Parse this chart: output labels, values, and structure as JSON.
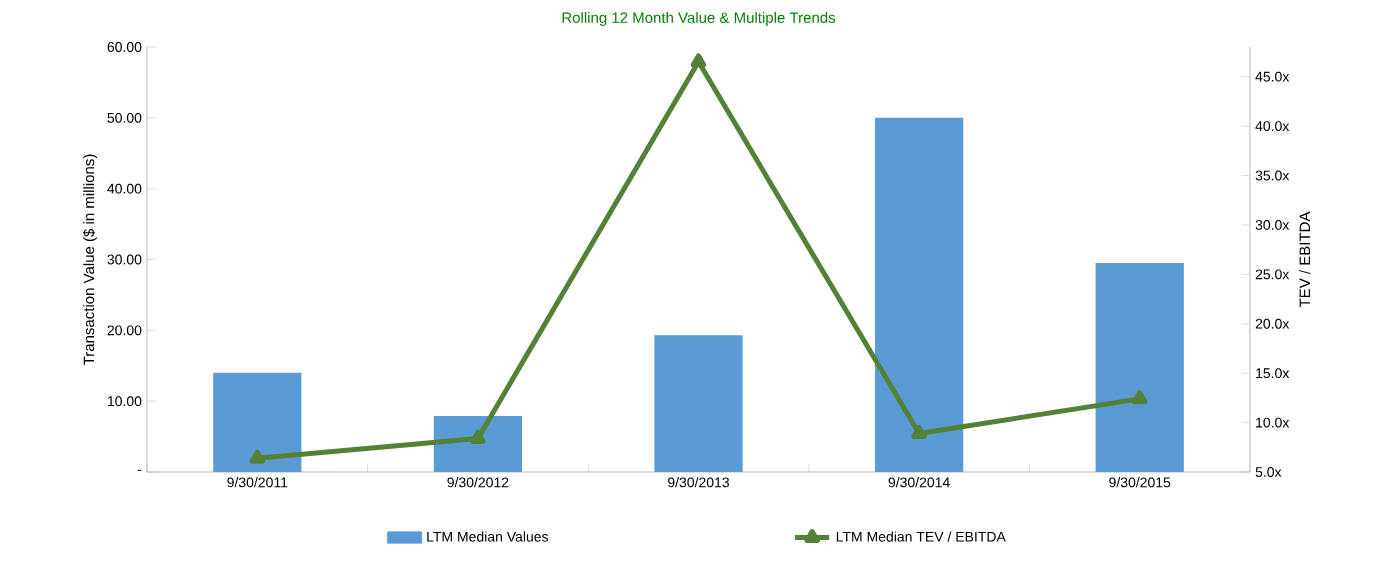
{
  "chart_data": {
    "type": "bar",
    "title": "Rolling 12 Month Value & Multiple Trends",
    "ylabel": "Transaction Value ($ in millions)",
    "y2label": "TEV / EBITDA",
    "categories": [
      "9/30/2011",
      "9/30/2012",
      "9/30/2013",
      "9/30/2014",
      "9/30/2015"
    ],
    "series": [
      {
        "name": "LTM Median Values",
        "color": "#5b9bd5",
        "values": [
          14.0,
          7.9,
          19.3,
          50.0,
          29.5
        ]
      },
      {
        "name": "LTM Median TEV / EBITDA",
        "type": "line",
        "axis": "y2",
        "color": "#538135",
        "marker": "triangle",
        "values": [
          6.4,
          8.4,
          46.5,
          8.9,
          12.4
        ]
      }
    ],
    "ylim": [
      0,
      60
    ],
    "yticks": [
      {
        "value": 0,
        "label": "-"
      },
      {
        "value": 10,
        "label": "10.00"
      },
      {
        "value": 20,
        "label": "20.00"
      },
      {
        "value": 30,
        "label": "30.00"
      },
      {
        "value": 40,
        "label": "40.00"
      },
      {
        "value": 50,
        "label": "50.00"
      },
      {
        "value": 60,
        "label": "60.00"
      }
    ],
    "y2lim": [
      5,
      48
    ],
    "y2ticks": [
      {
        "value": 5,
        "label": "5.0x"
      },
      {
        "value": 10,
        "label": "10.0x"
      },
      {
        "value": 15,
        "label": "15.0x"
      },
      {
        "value": 20,
        "label": "20.0x"
      },
      {
        "value": 25,
        "label": "25.0x"
      },
      {
        "value": 30,
        "label": "30.0x"
      },
      {
        "value": 35,
        "label": "35.0x"
      },
      {
        "value": 40,
        "label": "40.0x"
      },
      {
        "value": 45,
        "label": "45.0x"
      }
    ],
    "grid": false,
    "legend": "bottom"
  }
}
